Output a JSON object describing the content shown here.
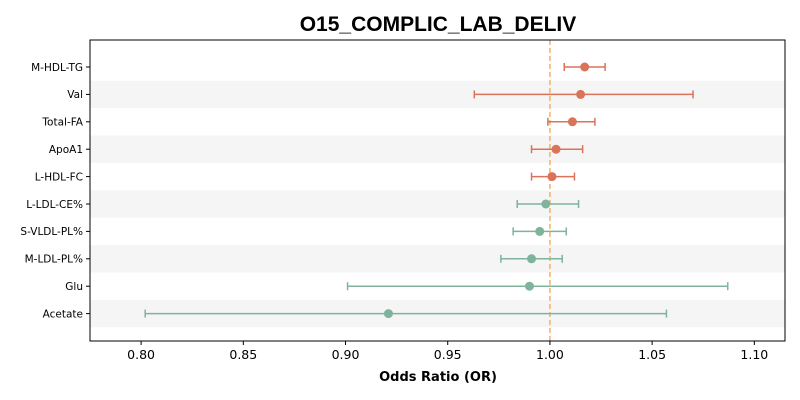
{
  "chart_data": {
    "type": "forest",
    "title": "O15_COMPLIC_LAB_DELIV",
    "xlabel": "Odds Ratio (OR)",
    "ylabel": "",
    "xlim": [
      0.775,
      1.115
    ],
    "xticks": [
      0.8,
      0.85,
      0.9,
      0.95,
      1.0,
      1.05,
      1.1
    ],
    "xtick_labels": [
      "0.80",
      "0.85",
      "0.90",
      "0.95",
      "1.00",
      "1.05",
      "1.10"
    ],
    "reference_line": 1.0,
    "colors": {
      "positive": "#d9735a",
      "negative": "#7fb39b",
      "reference": "#f2b36b",
      "band": "#f5f5f5"
    },
    "rows": [
      {
        "label": "M-HDL-TG",
        "or": 1.017,
        "lower": 1.007,
        "upper": 1.027
      },
      {
        "label": "Val",
        "or": 1.015,
        "lower": 0.963,
        "upper": 1.07
      },
      {
        "label": "Total-FA",
        "or": 1.011,
        "lower": 0.999,
        "upper": 1.022
      },
      {
        "label": "ApoA1",
        "or": 1.003,
        "lower": 0.991,
        "upper": 1.016
      },
      {
        "label": "L-HDL-FC",
        "or": 1.001,
        "lower": 0.991,
        "upper": 1.012
      },
      {
        "label": "L-LDL-CE%",
        "or": 0.998,
        "lower": 0.984,
        "upper": 1.014
      },
      {
        "label": "S-VLDL-PL%",
        "or": 0.995,
        "lower": 0.982,
        "upper": 1.008
      },
      {
        "label": "M-LDL-PL%",
        "or": 0.991,
        "lower": 0.976,
        "upper": 1.006
      },
      {
        "label": "Glu",
        "or": 0.99,
        "lower": 0.901,
        "upper": 1.087
      },
      {
        "label": "Acetate",
        "or": 0.921,
        "lower": 0.802,
        "upper": 1.057
      }
    ]
  }
}
